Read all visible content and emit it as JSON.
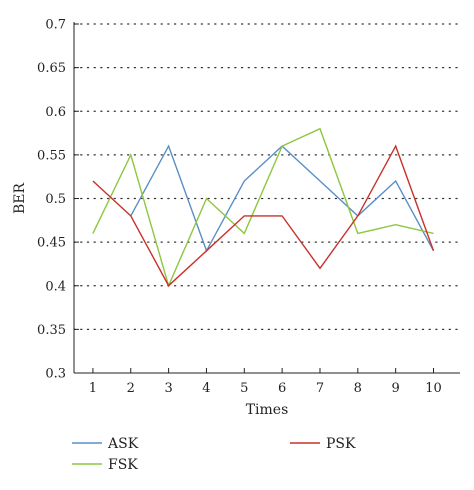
{
  "chart_data": {
    "type": "line",
    "xlabel": "Times",
    "ylabel": "BER",
    "x": [
      1,
      2,
      3,
      4,
      5,
      6,
      7,
      8,
      9,
      10
    ],
    "xlim": [
      0.5,
      10.7
    ],
    "ylim": [
      0.3,
      0.7
    ],
    "yticks": [
      "0.3",
      "0.35",
      "0.4",
      "0.45",
      "0.5",
      "0.55",
      "0.6",
      "0.65",
      "0.7"
    ],
    "xticks": [
      "1",
      "2",
      "3",
      "4",
      "5",
      "6",
      "7",
      "8",
      "9",
      "10"
    ],
    "grid": "horizontal dotted",
    "legend_position": "bottom",
    "series": [
      {
        "name": "ASK",
        "color": "#5b8fc7",
        "values": [
          null,
          0.48,
          0.56,
          0.44,
          0.52,
          0.56,
          0.52,
          0.48,
          0.52,
          0.44
        ]
      },
      {
        "name": "FSK",
        "color": "#8dc63f",
        "values": [
          0.46,
          0.55,
          0.4,
          0.5,
          0.46,
          0.56,
          0.58,
          0.46,
          0.47,
          0.46
        ]
      },
      {
        "name": "PSK",
        "color": "#c9302c",
        "values": [
          0.52,
          0.48,
          0.4,
          0.44,
          0.48,
          0.48,
          0.42,
          0.48,
          0.56,
          0.44
        ]
      }
    ]
  }
}
